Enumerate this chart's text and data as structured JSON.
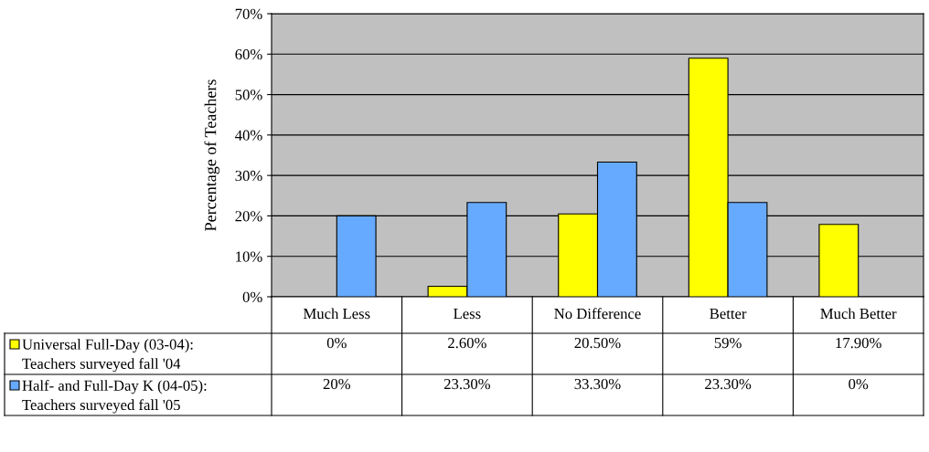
{
  "chart_data": {
    "type": "bar",
    "ylabel": "Percentage of Teachers",
    "categories": [
      "Much Less",
      "Less",
      "No Difference",
      "Better",
      "Much Better"
    ],
    "series": [
      {
        "name": "Universal Full-Day (03-04):\nTeachers surveyed fall '04",
        "color": "#ffff00",
        "values": [
          0,
          2.6,
          20.5,
          59,
          17.9
        ],
        "value_labels": [
          "0%",
          "2.60%",
          "20.50%",
          "59%",
          "17.90%"
        ]
      },
      {
        "name": "Half- and Full-Day K (04-05):\nTeachers surveyed fall '05",
        "color": "#66aaff",
        "values": [
          20,
          23.3,
          33.3,
          23.3,
          0
        ],
        "value_labels": [
          "20%",
          "23.30%",
          "33.30%",
          "23.30%",
          "0%"
        ]
      }
    ],
    "ylim": [
      0,
      70
    ],
    "yticks": [
      {
        "value": 0,
        "label": "0%"
      },
      {
        "value": 10,
        "label": "10%"
      },
      {
        "value": 20,
        "label": "20%"
      },
      {
        "value": 30,
        "label": "30%"
      },
      {
        "value": 40,
        "label": "40%"
      },
      {
        "value": 50,
        "label": "50%"
      },
      {
        "value": 60,
        "label": "60%"
      },
      {
        "value": 70,
        "label": "70%"
      }
    ],
    "grid": "y",
    "legend": "bottom left"
  }
}
